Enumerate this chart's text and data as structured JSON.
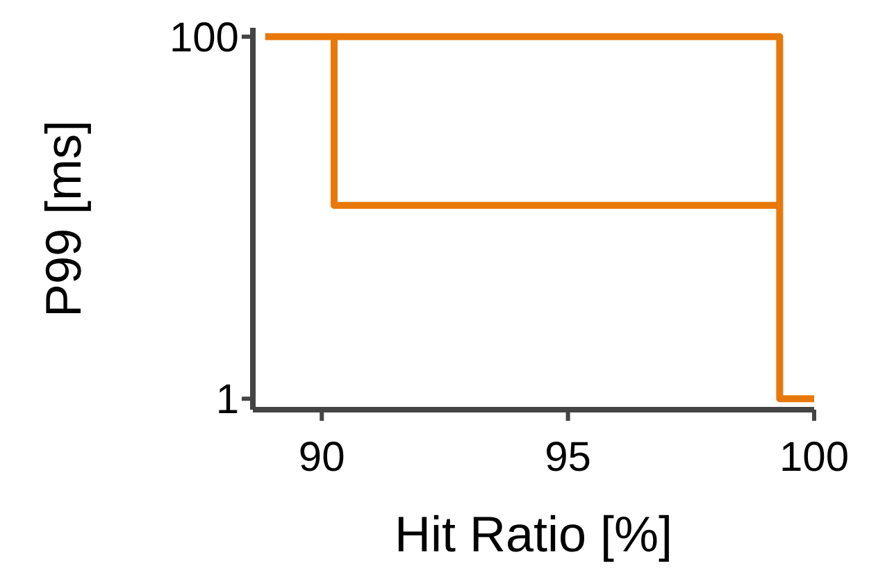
{
  "chart_data": {
    "type": "line",
    "xlabel": "Hit Ratio [%]",
    "ylabel": "P99 [ms]",
    "log": "y",
    "xlim": [
      88.6,
      100
    ],
    "xticks": [
      90,
      95,
      100
    ],
    "ylim": [
      0.87,
      112
    ],
    "yticks": [
      1,
      100
    ],
    "grid": false,
    "marker": "none",
    "line_style": "solid",
    "series": [
      {
        "color": "#e8780a",
        "x": [
          88.85,
          99.3,
          99.3,
          100
        ],
        "values": [
          100,
          100,
          1,
          1
        ]
      },
      {
        "color": "#e8780a",
        "x": [
          90.25,
          90.25,
          99.3
        ],
        "values": [
          100,
          11.7,
          11.7
        ]
      }
    ]
  }
}
